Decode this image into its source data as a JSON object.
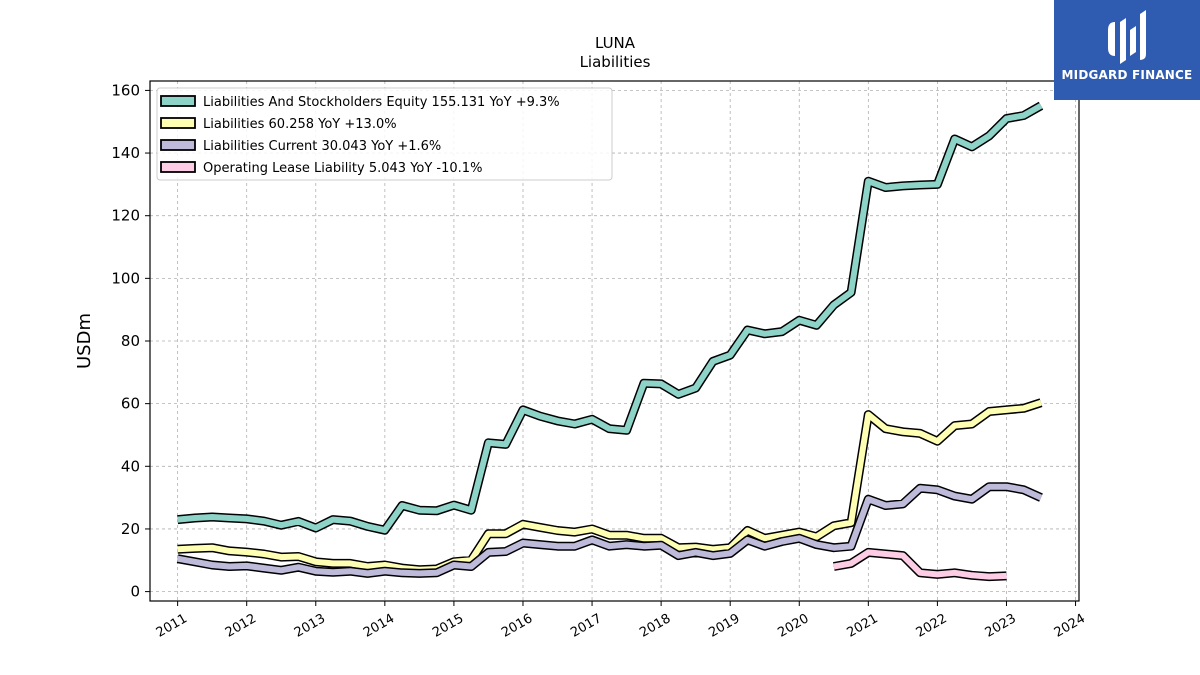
{
  "brand": {
    "name": "MIDGARD FINANCE",
    "color": "#2f5cb0"
  },
  "chart_data": {
    "type": "line",
    "title": "LUNA",
    "subtitle": "Liabilities",
    "xlabel": "",
    "ylabel": "USDm",
    "ylim": [
      -3,
      163
    ],
    "xlim": [
      2010.6,
      2024.05
    ],
    "yticks": [
      0,
      20,
      40,
      60,
      80,
      100,
      120,
      140,
      160
    ],
    "xticks": [
      "2011",
      "2012",
      "2013",
      "2014",
      "2015",
      "2016",
      "2017",
      "2018",
      "2019",
      "2020",
      "2021",
      "2022",
      "2023",
      "2024"
    ],
    "grid": true,
    "legend_position": "top-left",
    "series": [
      {
        "name": "Liabilities And Stockholders Equity  155.131 YoY +9.3%",
        "color": "#8dd3c7",
        "x": [
          2011.0,
          2011.25,
          2011.5,
          2011.75,
          2012.0,
          2012.25,
          2012.5,
          2012.75,
          2013.0,
          2013.25,
          2013.5,
          2013.75,
          2014.0,
          2014.25,
          2014.5,
          2014.75,
          2015.0,
          2015.25,
          2015.5,
          2015.75,
          2016.0,
          2016.25,
          2016.5,
          2016.75,
          2017.0,
          2017.25,
          2017.5,
          2017.75,
          2018.0,
          2018.25,
          2018.5,
          2018.75,
          2019.0,
          2019.25,
          2019.5,
          2019.75,
          2020.0,
          2020.25,
          2020.5,
          2020.75,
          2021.0,
          2021.25,
          2021.5,
          2021.75,
          2022.0,
          2022.25,
          2022.5,
          2022.75,
          2023.0,
          2023.25,
          2023.5
        ],
        "values": [
          23.0,
          23.5,
          23.8,
          23.5,
          23.2,
          22.5,
          21.2,
          22.4,
          20.3,
          23.0,
          22.5,
          20.8,
          19.6,
          27.5,
          26.0,
          25.8,
          27.6,
          26.0,
          47.5,
          47.0,
          58.0,
          56.0,
          54.5,
          53.5,
          55.0,
          52.0,
          51.5,
          66.5,
          66.3,
          63.0,
          65.0,
          73.5,
          75.5,
          83.5,
          82.3,
          83.0,
          86.6,
          85.0,
          91.5,
          95.5,
          131.0,
          129.0,
          129.5,
          129.8,
          130.0,
          144.5,
          142.0,
          145.5,
          151.0,
          152.0,
          155.1
        ]
      },
      {
        "name": "Liabilities  60.258 YoY +13.0%",
        "color": "#ffffb3",
        "x": [
          2011.0,
          2011.25,
          2011.5,
          2011.75,
          2012.0,
          2012.25,
          2012.5,
          2012.75,
          2013.0,
          2013.25,
          2013.5,
          2013.75,
          2014.0,
          2014.25,
          2014.5,
          2014.75,
          2015.0,
          2015.25,
          2015.5,
          2015.75,
          2016.0,
          2016.25,
          2016.5,
          2016.75,
          2017.0,
          2017.25,
          2017.5,
          2017.75,
          2018.0,
          2018.25,
          2018.5,
          2018.75,
          2019.0,
          2019.25,
          2019.5,
          2019.75,
          2020.0,
          2020.25,
          2020.5,
          2020.75,
          2021.0,
          2021.25,
          2021.5,
          2021.75,
          2022.0,
          2022.25,
          2022.5,
          2022.75,
          2023.0,
          2023.25,
          2023.5
        ],
        "values": [
          13.5,
          13.8,
          14.0,
          13.0,
          12.6,
          12.0,
          11.0,
          11.2,
          9.5,
          9.0,
          9.0,
          8.0,
          8.5,
          7.5,
          7.0,
          7.2,
          9.5,
          10.0,
          18.5,
          18.5,
          21.5,
          20.5,
          19.5,
          19.0,
          20.0,
          18.0,
          18.0,
          17.0,
          17.0,
          14.0,
          14.2,
          13.5,
          14.0,
          19.5,
          17.0,
          18.0,
          19.0,
          17.5,
          21.0,
          22.0,
          56.5,
          52.0,
          51.0,
          50.5,
          48.0,
          53.0,
          53.5,
          57.5,
          58.0,
          58.5,
          60.3
        ]
      },
      {
        "name": "Liabilities Current  30.043 YoY +1.6%",
        "color": "#bebada",
        "x": [
          2011.0,
          2011.25,
          2011.5,
          2011.75,
          2012.0,
          2012.25,
          2012.5,
          2012.75,
          2013.0,
          2013.25,
          2013.5,
          2013.75,
          2014.0,
          2014.25,
          2014.5,
          2014.75,
          2015.0,
          2015.25,
          2015.5,
          2015.75,
          2016.0,
          2016.25,
          2016.5,
          2016.75,
          2017.0,
          2017.25,
          2017.5,
          2017.75,
          2018.0,
          2018.25,
          2018.5,
          2018.75,
          2019.0,
          2019.25,
          2019.5,
          2019.75,
          2020.0,
          2020.25,
          2020.5,
          2020.75,
          2021.0,
          2021.25,
          2021.5,
          2021.75,
          2022.0,
          2022.25,
          2022.5,
          2022.75,
          2023.0,
          2023.25,
          2023.5
        ],
        "values": [
          10.5,
          9.5,
          8.5,
          8.0,
          8.2,
          7.5,
          6.8,
          7.8,
          6.5,
          6.2,
          6.5,
          5.8,
          6.5,
          6.0,
          5.8,
          6.0,
          8.5,
          8.0,
          12.5,
          12.8,
          15.5,
          15.0,
          14.5,
          14.5,
          16.5,
          14.5,
          15.0,
          14.5,
          14.8,
          11.5,
          12.5,
          11.5,
          12.2,
          16.5,
          14.5,
          16.0,
          17.0,
          15.0,
          14.0,
          14.5,
          29.5,
          27.5,
          28.0,
          33.0,
          32.5,
          30.5,
          29.5,
          33.5,
          33.5,
          32.5,
          30.0
        ]
      },
      {
        "name": "Operating Lease Liability  5.043 YoY -10.1%",
        "color": "#fccde5",
        "x": [
          2020.5,
          2020.75,
          2021.0,
          2021.25,
          2021.5,
          2021.75,
          2022.0,
          2022.25,
          2022.5,
          2022.75,
          2023.0
        ],
        "values": [
          8.0,
          9.0,
          12.5,
          12.0,
          11.5,
          6.0,
          5.5,
          6.0,
          5.2,
          4.8,
          5.0
        ]
      }
    ]
  }
}
